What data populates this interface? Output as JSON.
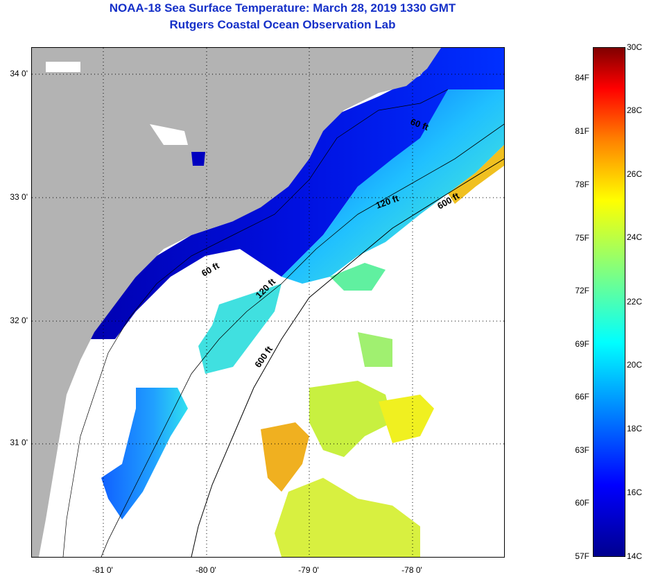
{
  "title": {
    "line1": "NOAA-18 Sea Surface Temperature:  March 28, 2019 1330 GMT",
    "line2": "Rutgers Coastal Ocean Observation Lab"
  },
  "map": {
    "lat_labels": [
      "34 0'",
      "33 0'",
      "32 0'",
      "31 0'"
    ],
    "lon_labels": [
      "-81 0'",
      "-80 0'",
      "-79 0'",
      "-78 0'"
    ],
    "contour_labels": [
      "60 ft",
      "120 ft",
      "600 ft",
      "60 ft",
      "120 ft",
      "600 ft"
    ]
  },
  "colorbar": {
    "fahrenheit": [
      "84F",
      "81F",
      "78F",
      "75F",
      "72F",
      "69F",
      "66F",
      "63F",
      "60F",
      "57F"
    ],
    "celsius": [
      "30C",
      "28C",
      "26C",
      "24C",
      "22C",
      "20C",
      "18C",
      "16C",
      "14C"
    ]
  },
  "colors": {
    "land": "#b3b3b3",
    "title": "#1530c8",
    "cloud": "#ffffff"
  }
}
